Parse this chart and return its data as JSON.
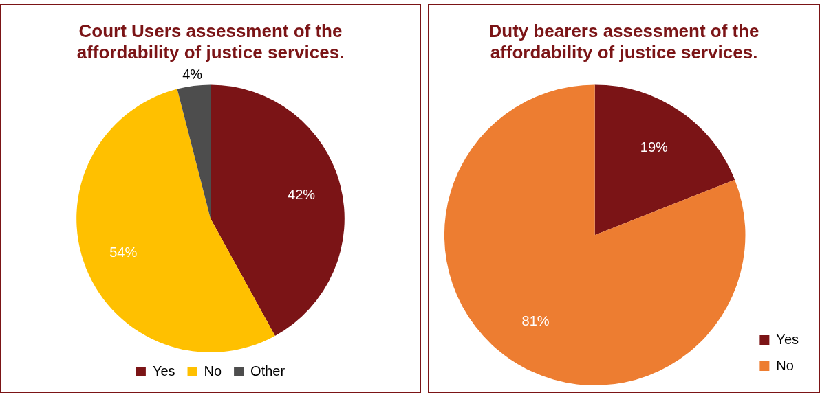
{
  "chart_data": [
    {
      "type": "pie",
      "title": "Court Users assessment of the affordability of justice services.",
      "categories": [
        "Yes",
        "No",
        "Other"
      ],
      "values": [
        42,
        54,
        4
      ],
      "value_labels": [
        "42%",
        "54%",
        "4%"
      ],
      "colors": [
        "#7b1416",
        "#ffc000",
        "#4d4d4d"
      ],
      "legend": "bottom"
    },
    {
      "type": "pie",
      "title": "Duty bearers assessment of the affordability of justice services.",
      "categories": [
        "Yes",
        "No"
      ],
      "values": [
        19,
        81
      ],
      "value_labels": [
        "19%",
        "81%"
      ],
      "colors": [
        "#7b1416",
        "#ed7d31"
      ],
      "legend": "bottom right"
    }
  ]
}
